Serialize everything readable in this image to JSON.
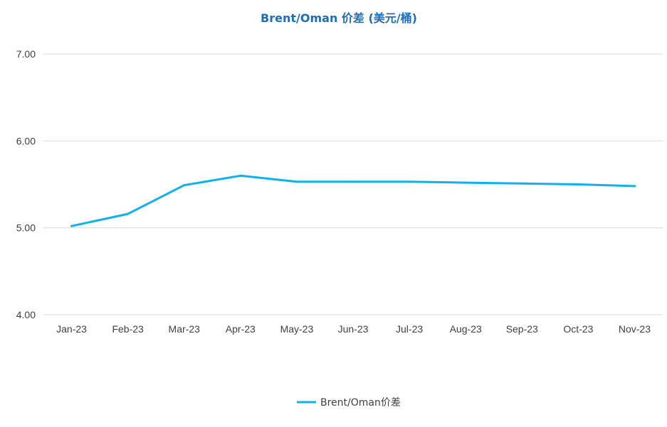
{
  "chart_data": {
    "type": "line",
    "title": "Brent/Oman 价差 (美元/桶)",
    "xlabel": "",
    "ylabel": "",
    "categories": [
      "Jan-23",
      "Feb-23",
      "Mar-23",
      "Apr-23",
      "May-23",
      "Jun-23",
      "Jul-23",
      "Aug-23",
      "Sep-23",
      "Oct-23",
      "Nov-23"
    ],
    "y_ticks": [
      "4.00",
      "5.00",
      "6.00",
      "7.00"
    ],
    "ylim": [
      4.0,
      7.0
    ],
    "grid": true,
    "legend_position": "bottom",
    "series": [
      {
        "name": "Brent/Oman价差",
        "values": [
          5.02,
          5.16,
          5.49,
          5.6,
          5.53,
          5.53,
          5.53,
          5.52,
          5.51,
          5.5,
          5.48
        ],
        "color": "#12B0EA"
      }
    ],
    "colors": {
      "title": "#1F6DB5",
      "gridline": "#D9D9D9",
      "tick_text": "#404040"
    }
  }
}
